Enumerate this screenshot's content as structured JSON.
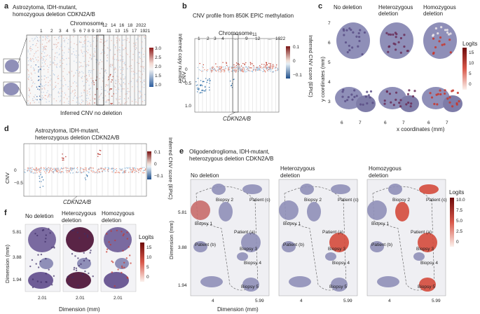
{
  "panel_a": {
    "label": "a",
    "title_1": "Astrozytoma, IDH-mutant,",
    "title_2": "homozygous deletion CDKN2A/B",
    "chrom_title": "Chromosome",
    "chromosomes": [
      "1",
      "2",
      "3",
      "4",
      "5",
      "6",
      "7",
      "8",
      "9",
      "10",
      "12",
      "14",
      "16",
      "18",
      "2022",
      "11",
      "13",
      "15",
      "17",
      "19",
      "21"
    ],
    "colorbar_ticks": [
      "3.0",
      "2.5",
      "2.0",
      "1.5",
      "1.0"
    ],
    "colorbar_label": "Inferred copy number",
    "bottom_label": "Inferred CNV no deletion"
  },
  "panel_b": {
    "label": "b",
    "title": "CNV profile from 850K EPIC methylation",
    "chrom_title": "Chromosome",
    "chrom_top": [
      "1",
      "2",
      "3",
      "4",
      "...",
      "9",
      "12",
      "...",
      "19",
      "22"
    ],
    "chrom_mid": [
      "11"
    ],
    "ylabel": "CNV",
    "yticks": [
      "0",
      "0.5",
      "1.0"
    ],
    "colorbar_ticks": [
      "0.1",
      "0",
      "−0.1"
    ],
    "colorbar_label": "Inferred CNV score (EPIC)",
    "gene_label": "CDKN2A/B"
  },
  "panel_c": {
    "label": "c",
    "titles": [
      "No deletion",
      "Heterozygous deletion",
      "Homozygous deletion"
    ],
    "ylabel": "y coordinates (mm)",
    "yticks": [
      "7",
      "6",
      "5",
      "4",
      "3"
    ],
    "xticks": [
      "6",
      "7"
    ],
    "xlabel": "x coordinates (mm)",
    "colorbar_title": "Logits",
    "colorbar_ticks": [
      "15",
      "10",
      "5",
      "0"
    ]
  },
  "panel_d": {
    "label": "d",
    "title_1": "Astrozytoma, IDH-mutant,",
    "title_2": "heterozygous deletion CDKN2A/B",
    "ylabel": "CNV",
    "yticks": [
      "0",
      "−0.5"
    ],
    "colorbar_ticks": [
      "0.1",
      "0",
      "−0.1"
    ],
    "colorbar_label": "Inferred CNV score (EPIC)",
    "gene_label": "CDKN2A/B"
  },
  "panel_e": {
    "label": "e",
    "title_1": "Oligodendroglioma, IDH-mutant,",
    "title_2": "heterozygous deletion CDKN2A/B",
    "columns": [
      {
        "title_1": "No deletion",
        "title_2": ""
      },
      {
        "title_1": "Heterozygous",
        "title_2": "deletion"
      },
      {
        "title_1": "Homozygous",
        "title_2": "deletion"
      }
    ],
    "annotations": [
      "Biopsy 2",
      "Patient (c)",
      "Biopsy 1",
      "Patient (a)",
      "Patient (b)",
      "Biopsy 3",
      "Biopsy 4",
      "Biopsy 5"
    ],
    "ylabel": "Dimension (mm)",
    "yticks": [
      "5.81",
      "3.88",
      "1.94"
    ],
    "xticks": [
      "4",
      "5.99"
    ],
    "xlabel": "Dimension (mm)",
    "colorbar_title": "Logits",
    "colorbar_ticks": [
      "10.0",
      "7.5",
      "5.0",
      "2.5",
      "0"
    ]
  },
  "panel_f": {
    "label": "f",
    "titles": [
      {
        "title_1": "No deletion",
        "title_2": ""
      },
      {
        "title_1": "Heterozygous",
        "title_2": "deletion"
      },
      {
        "title_1": "Homozygous",
        "title_2": "deletion"
      }
    ],
    "ylabel": "Dimension (mm)",
    "yticks": [
      "5.81",
      "3.88",
      "1.94"
    ],
    "xtick": "2.01",
    "xlabel": "Dimension (mm)",
    "colorbar_title": "Logits",
    "colorbar_ticks": [
      "15",
      "10",
      "5",
      "0"
    ]
  },
  "colors": {
    "tissue": "#8f8fb8",
    "tissue_dark": "#5b4f86",
    "hot": "#c8372d",
    "blue": "#2f6fa8"
  }
}
